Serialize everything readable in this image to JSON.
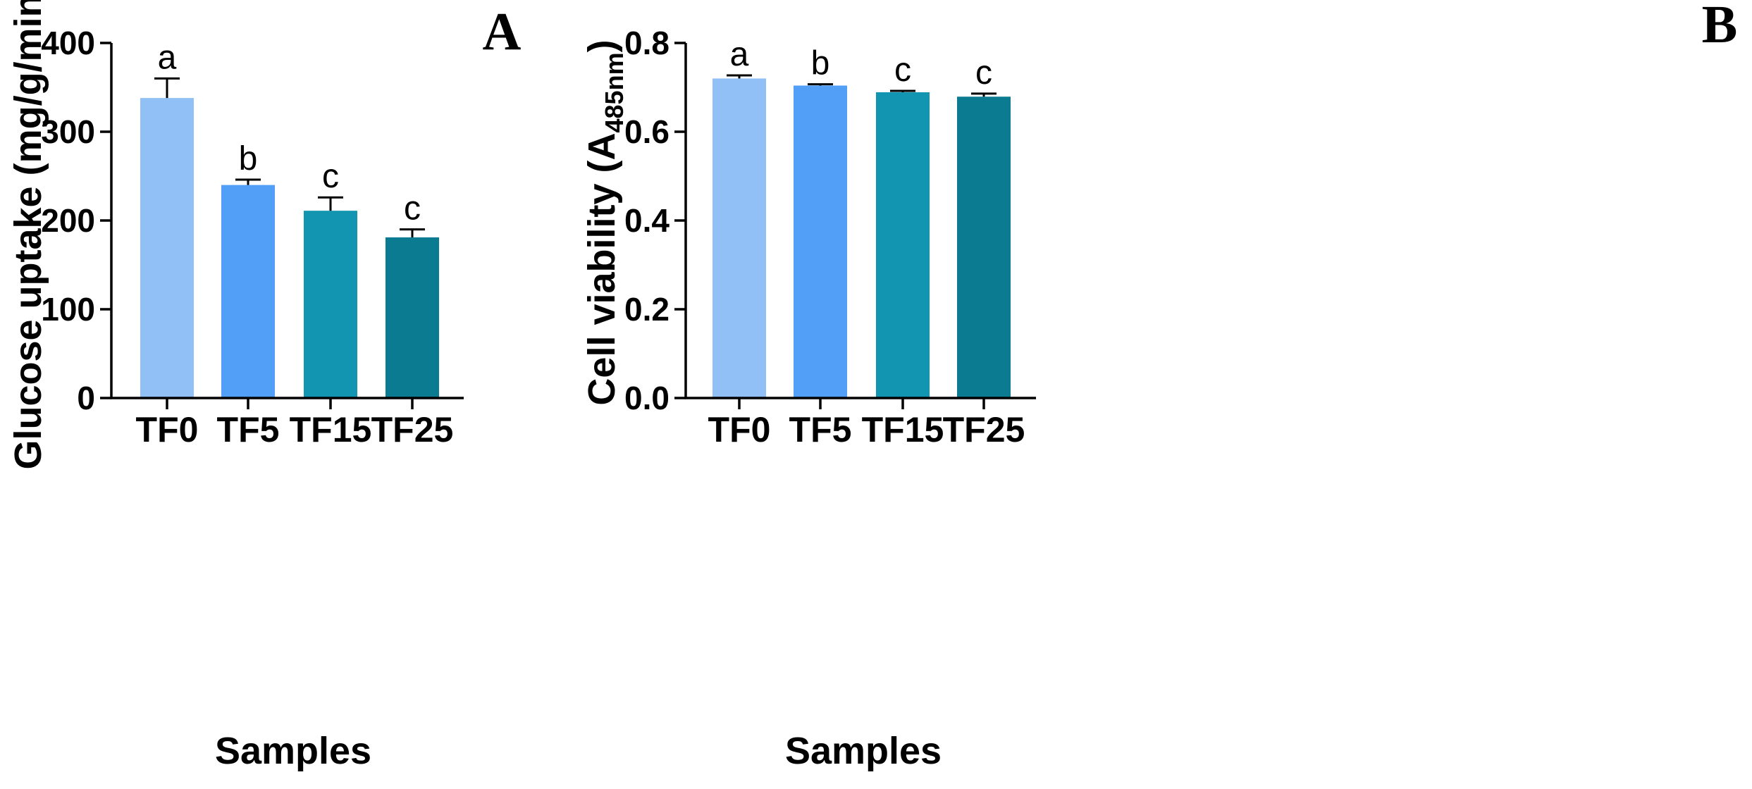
{
  "colors": {
    "bar_colors": [
      "#90c0f5",
      "#529ff8",
      "#1195b1",
      "#0a7b91"
    ],
    "axis": "#000000"
  },
  "chart_data": [
    {
      "type": "bar",
      "panel_label": "A",
      "title": "",
      "xlabel": "Samples",
      "ylabel": "Glucose uptake (mg/g/min)",
      "categories": [
        "TF0",
        "TF5",
        "TF15",
        "TF25"
      ],
      "values": [
        338,
        240,
        211,
        181
      ],
      "errors": [
        22,
        6,
        15,
        9
      ],
      "significance": [
        "a",
        "b",
        "c",
        "c"
      ],
      "ylim": [
        0,
        400
      ],
      "yticks": [
        0,
        100,
        200,
        300,
        400
      ],
      "ytick_labels": [
        "0",
        "100",
        "200",
        "300",
        "400"
      ],
      "grid": false
    },
    {
      "type": "bar",
      "panel_label": "B",
      "title": "",
      "xlabel": "Samples",
      "ylabel": "Cell viability (A",
      "ylabel_subscript": "485nm",
      "ylabel_close": ")",
      "categories": [
        "TF0",
        "TF5",
        "TF15",
        "TF25"
      ],
      "values": [
        0.72,
        0.704,
        0.689,
        0.679
      ],
      "errors": [
        0.007,
        0.003,
        0.003,
        0.007
      ],
      "significance": [
        "a",
        "b",
        "c",
        "c"
      ],
      "ylim": [
        0,
        0.8
      ],
      "yticks": [
        0,
        0.2,
        0.4,
        0.6,
        0.8
      ],
      "ytick_labels": [
        "0.0",
        "0.2",
        "0.4",
        "0.6",
        "0.8"
      ],
      "grid": false
    }
  ]
}
